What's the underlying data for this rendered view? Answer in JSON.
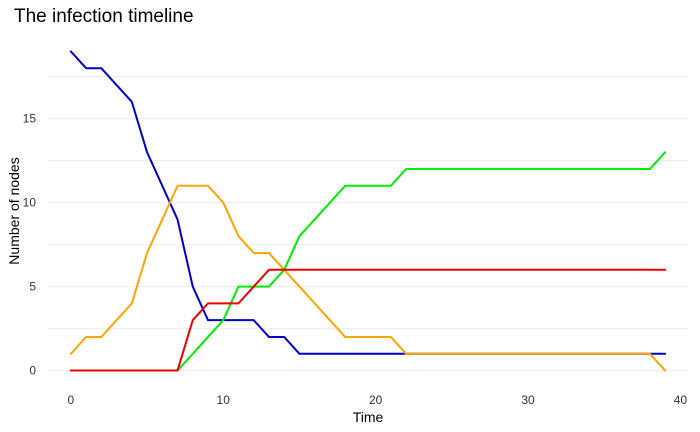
{
  "chart_data": {
    "type": "line",
    "title": "The infection timeline",
    "xlabel": "Time",
    "ylabel": "Number of nodes",
    "xlim": [
      -1.5,
      40.5
    ],
    "ylim": [
      -0.8,
      19.8
    ],
    "x_ticks": [
      0,
      10,
      20,
      30,
      40
    ],
    "y_ticks": [
      0,
      5,
      10,
      15
    ],
    "grid": true,
    "legend": "none",
    "series": [
      {
        "color": "#0000cc",
        "x": [
          0,
          1,
          2,
          3,
          4,
          5,
          6,
          7,
          8,
          9,
          10,
          11,
          12,
          13,
          14,
          15,
          16,
          17,
          18,
          19,
          20,
          21,
          22,
          23,
          24,
          25,
          26,
          27,
          28,
          29,
          30,
          31,
          32,
          33,
          34,
          35,
          36,
          37,
          38,
          39
        ],
        "values": [
          19,
          18,
          18,
          17,
          16,
          13,
          11,
          9,
          5,
          3,
          3,
          3,
          3,
          2,
          2,
          1,
          1,
          1,
          1,
          1,
          1,
          1,
          1,
          1,
          1,
          1,
          1,
          1,
          1,
          1,
          1,
          1,
          1,
          1,
          1,
          1,
          1,
          1,
          1,
          1
        ]
      },
      {
        "color": "#ffa500",
        "x": [
          0,
          1,
          2,
          3,
          4,
          5,
          6,
          7,
          8,
          9,
          10,
          11,
          12,
          13,
          14,
          15,
          16,
          17,
          18,
          19,
          20,
          21,
          22,
          23,
          24,
          25,
          26,
          27,
          28,
          29,
          30,
          31,
          32,
          33,
          34,
          35,
          36,
          37,
          38,
          39
        ],
        "values": [
          1,
          2,
          2,
          3,
          4,
          7,
          9,
          11,
          11,
          11,
          10,
          8,
          7,
          7,
          6,
          5,
          4,
          3,
          2,
          2,
          2,
          2,
          1,
          1,
          1,
          1,
          1,
          1,
          1,
          1,
          1,
          1,
          1,
          1,
          1,
          1,
          1,
          1,
          1,
          0
        ]
      },
      {
        "color": "#00ee00",
        "x": [
          0,
          1,
          2,
          3,
          4,
          5,
          6,
          7,
          8,
          9,
          10,
          11,
          12,
          13,
          14,
          15,
          16,
          17,
          18,
          19,
          20,
          21,
          22,
          23,
          24,
          25,
          26,
          27,
          28,
          29,
          30,
          31,
          32,
          33,
          34,
          35,
          36,
          37,
          38,
          39
        ],
        "values": [
          0,
          0,
          0,
          0,
          0,
          0,
          0,
          0,
          1,
          2,
          3,
          5,
          5,
          5,
          6,
          8,
          9,
          10,
          11,
          11,
          11,
          11,
          12,
          12,
          12,
          12,
          12,
          12,
          12,
          12,
          12,
          12,
          12,
          12,
          12,
          12,
          12,
          12,
          12,
          13
        ]
      },
      {
        "color": "#ee0000",
        "x": [
          0,
          1,
          2,
          3,
          4,
          5,
          6,
          7,
          8,
          9,
          10,
          11,
          12,
          13,
          14,
          15,
          16,
          17,
          18,
          19,
          20,
          21,
          22,
          23,
          24,
          25,
          26,
          27,
          28,
          29,
          30,
          31,
          32,
          33,
          34,
          35,
          36,
          37,
          38,
          39
        ],
        "values": [
          0,
          0,
          0,
          0,
          0,
          0,
          0,
          0,
          3,
          4,
          4,
          4,
          5,
          6,
          6,
          6,
          6,
          6,
          6,
          6,
          6,
          6,
          6,
          6,
          6,
          6,
          6,
          6,
          6,
          6,
          6,
          6,
          6,
          6,
          6,
          6,
          6,
          6,
          6,
          6
        ]
      }
    ]
  }
}
